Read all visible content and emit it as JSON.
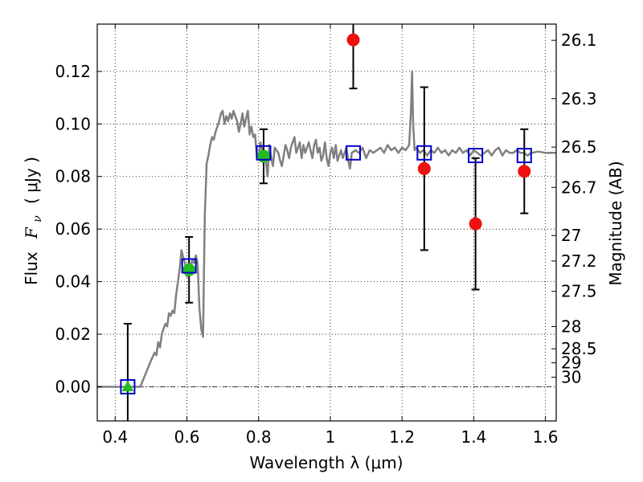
{
  "chart_data": {
    "type": "scatter",
    "title": "",
    "xlabel": "Wavelength  λ (μm)",
    "ylabel_text": "Flux",
    "ylabel_symbol": "F",
    "ylabel_subscript": "ν",
    "ylabel_unit": "(  μJy )",
    "y2label": "Magnitude (AB)",
    "xlim": [
      0.35,
      1.63
    ],
    "ylim": [
      -0.013,
      0.138
    ],
    "grid": true,
    "x_ticks": [
      0.4,
      0.6,
      0.8,
      1.0,
      1.2,
      1.4,
      1.6
    ],
    "x_tick_labels": [
      "0.4",
      "0.6",
      "0.8",
      "1",
      "1.2",
      "1.4",
      "1.6"
    ],
    "y_ticks": [
      0.0,
      0.02,
      0.04,
      0.06,
      0.08,
      0.1,
      0.12
    ],
    "y_tick_labels": [
      "0.00",
      "0.02",
      "0.04",
      "0.06",
      "0.08",
      "0.10",
      "0.12"
    ],
    "mag_ticks": [
      26.1,
      26.3,
      26.5,
      26.7,
      27,
      27.2,
      27.5,
      28,
      28.5,
      29,
      30
    ],
    "mag_tick_labels": [
      "26.1",
      "26.3",
      "26.5",
      "26.7",
      "27",
      "27.2",
      "27.5",
      "28",
      "28.5",
      "29",
      "30"
    ],
    "colors": {
      "model": "#808080",
      "model_flux": "#0000cc",
      "observed": "#22bb22",
      "other": "#ee1111",
      "errorbar": "#000000"
    },
    "model_spectrum": [
      [
        0.35,
        0.0
      ],
      [
        0.47,
        0.0
      ],
      [
        0.485,
        0.005
      ],
      [
        0.5,
        0.01
      ],
      [
        0.51,
        0.013
      ],
      [
        0.515,
        0.012
      ],
      [
        0.52,
        0.017
      ],
      [
        0.525,
        0.015
      ],
      [
        0.53,
        0.02
      ],
      [
        0.535,
        0.022
      ],
      [
        0.54,
        0.024
      ],
      [
        0.545,
        0.023
      ],
      [
        0.55,
        0.028
      ],
      [
        0.555,
        0.027
      ],
      [
        0.56,
        0.029
      ],
      [
        0.565,
        0.028
      ],
      [
        0.57,
        0.035
      ],
      [
        0.575,
        0.04
      ],
      [
        0.58,
        0.045
      ],
      [
        0.585,
        0.052
      ],
      [
        0.59,
        0.049
      ],
      [
        0.595,
        0.047
      ],
      [
        0.6,
        0.042
      ],
      [
        0.605,
        0.044
      ],
      [
        0.61,
        0.046
      ],
      [
        0.615,
        0.048
      ],
      [
        0.62,
        0.047
      ],
      [
        0.625,
        0.05
      ],
      [
        0.63,
        0.047
      ],
      [
        0.635,
        0.03
      ],
      [
        0.64,
        0.022
      ],
      [
        0.645,
        0.019
      ],
      [
        0.65,
        0.065
      ],
      [
        0.655,
        0.085
      ],
      [
        0.66,
        0.088
      ],
      [
        0.665,
        0.092
      ],
      [
        0.67,
        0.095
      ],
      [
        0.675,
        0.094
      ],
      [
        0.68,
        0.097
      ],
      [
        0.685,
        0.099
      ],
      [
        0.69,
        0.101
      ],
      [
        0.695,
        0.104
      ],
      [
        0.7,
        0.105
      ],
      [
        0.705,
        0.1
      ],
      [
        0.71,
        0.103
      ],
      [
        0.715,
        0.101
      ],
      [
        0.72,
        0.104
      ],
      [
        0.725,
        0.102
      ],
      [
        0.73,
        0.105
      ],
      [
        0.735,
        0.103
      ],
      [
        0.74,
        0.101
      ],
      [
        0.745,
        0.097
      ],
      [
        0.75,
        0.1
      ],
      [
        0.755,
        0.104
      ],
      [
        0.76,
        0.099
      ],
      [
        0.765,
        0.102
      ],
      [
        0.77,
        0.105
      ],
      [
        0.775,
        0.096
      ],
      [
        0.78,
        0.099
      ],
      [
        0.785,
        0.095
      ],
      [
        0.79,
        0.096
      ],
      [
        0.795,
        0.088
      ],
      [
        0.8,
        0.087
      ],
      [
        0.805,
        0.093
      ],
      [
        0.81,
        0.09
      ],
      [
        0.815,
        0.087
      ],
      [
        0.82,
        0.086
      ],
      [
        0.825,
        0.08
      ],
      [
        0.83,
        0.092
      ],
      [
        0.835,
        0.087
      ],
      [
        0.84,
        0.084
      ],
      [
        0.845,
        0.091
      ],
      [
        0.85,
        0.09
      ],
      [
        0.855,
        0.089
      ],
      [
        0.86,
        0.086
      ],
      [
        0.865,
        0.084
      ],
      [
        0.87,
        0.088
      ],
      [
        0.875,
        0.092
      ],
      [
        0.88,
        0.09
      ],
      [
        0.885,
        0.087
      ],
      [
        0.89,
        0.091
      ],
      [
        0.895,
        0.093
      ],
      [
        0.9,
        0.095
      ],
      [
        0.905,
        0.089
      ],
      [
        0.91,
        0.091
      ],
      [
        0.915,
        0.093
      ],
      [
        0.92,
        0.087
      ],
      [
        0.925,
        0.092
      ],
      [
        0.93,
        0.089
      ],
      [
        0.935,
        0.091
      ],
      [
        0.94,
        0.093
      ],
      [
        0.945,
        0.09
      ],
      [
        0.95,
        0.087
      ],
      [
        0.955,
        0.092
      ],
      [
        0.96,
        0.094
      ],
      [
        0.965,
        0.089
      ],
      [
        0.97,
        0.091
      ],
      [
        0.975,
        0.086
      ],
      [
        0.98,
        0.088
      ],
      [
        0.985,
        0.093
      ],
      [
        0.99,
        0.087
      ],
      [
        0.995,
        0.084
      ],
      [
        1.0,
        0.089
      ],
      [
        1.005,
        0.091
      ],
      [
        1.01,
        0.087
      ],
      [
        1.015,
        0.092
      ],
      [
        1.02,
        0.086
      ],
      [
        1.025,
        0.088
      ],
      [
        1.03,
        0.09
      ],
      [
        1.035,
        0.087
      ],
      [
        1.04,
        0.089
      ],
      [
        1.045,
        0.091
      ],
      [
        1.05,
        0.086
      ],
      [
        1.055,
        0.083
      ],
      [
        1.06,
        0.089
      ],
      [
        1.07,
        0.09
      ],
      [
        1.08,
        0.089
      ],
      [
        1.09,
        0.091
      ],
      [
        1.1,
        0.087
      ],
      [
        1.11,
        0.09
      ],
      [
        1.12,
        0.089
      ],
      [
        1.13,
        0.09
      ],
      [
        1.14,
        0.091
      ],
      [
        1.15,
        0.089
      ],
      [
        1.16,
        0.092
      ],
      [
        1.17,
        0.09
      ],
      [
        1.18,
        0.091
      ],
      [
        1.19,
        0.089
      ],
      [
        1.2,
        0.091
      ],
      [
        1.21,
        0.09
      ],
      [
        1.22,
        0.092
      ],
      [
        1.225,
        0.105
      ],
      [
        1.228,
        0.12
      ],
      [
        1.231,
        0.1
      ],
      [
        1.235,
        0.09
      ],
      [
        1.24,
        0.091
      ],
      [
        1.25,
        0.089
      ],
      [
        1.26,
        0.09
      ],
      [
        1.27,
        0.088
      ],
      [
        1.28,
        0.09
      ],
      [
        1.29,
        0.089
      ],
      [
        1.3,
        0.091
      ],
      [
        1.31,
        0.089
      ],
      [
        1.32,
        0.09
      ],
      [
        1.33,
        0.088
      ],
      [
        1.34,
        0.09
      ],
      [
        1.35,
        0.089
      ],
      [
        1.36,
        0.091
      ],
      [
        1.37,
        0.089
      ],
      [
        1.38,
        0.09
      ],
      [
        1.39,
        0.088
      ],
      [
        1.4,
        0.09
      ],
      [
        1.41,
        0.089
      ],
      [
        1.42,
        0.088
      ],
      [
        1.43,
        0.089
      ],
      [
        1.44,
        0.09
      ],
      [
        1.45,
        0.088
      ],
      [
        1.46,
        0.09
      ],
      [
        1.47,
        0.091
      ],
      [
        1.48,
        0.088
      ],
      [
        1.49,
        0.09
      ],
      [
        1.5,
        0.089
      ],
      [
        1.51,
        0.089
      ],
      [
        1.52,
        0.09
      ],
      [
        1.53,
        0.089
      ],
      [
        1.54,
        0.089
      ],
      [
        1.55,
        0.088
      ],
      [
        1.56,
        0.089
      ],
      [
        1.58,
        0.0895
      ],
      [
        1.6,
        0.089
      ],
      [
        1.63,
        0.089
      ]
    ],
    "model_fluxes": [
      {
        "x": 0.435,
        "y": 0.0
      },
      {
        "x": 0.606,
        "y": 0.046
      },
      {
        "x": 0.814,
        "y": 0.089
      },
      {
        "x": 1.064,
        "y": 0.089
      },
      {
        "x": 1.262,
        "y": 0.089
      },
      {
        "x": 1.405,
        "y": 0.088
      },
      {
        "x": 1.541,
        "y": 0.088
      }
    ],
    "observed_detections": [
      {
        "x": 0.606,
        "y": 0.0445,
        "yerr": 0.0125
      },
      {
        "x": 0.814,
        "y": 0.0877,
        "yerr": 0.0103
      }
    ],
    "upper_limits": [
      {
        "x": 0.435,
        "y": 0.0,
        "yerr": 0.024
      }
    ],
    "other_points": [
      {
        "x": 1.064,
        "y": 0.132,
        "yerr": 0.0185
      },
      {
        "x": 1.262,
        "y": 0.083,
        "yerr": 0.031
      },
      {
        "x": 1.405,
        "y": 0.062,
        "yerr": 0.025
      },
      {
        "x": 1.541,
        "y": 0.082,
        "yerr": 0.016
      }
    ]
  }
}
